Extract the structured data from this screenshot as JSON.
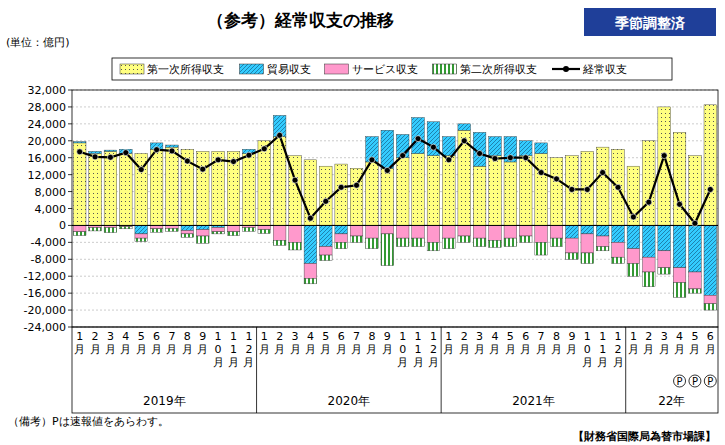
{
  "chart_data": {
    "type": "bar",
    "title": "（参考）経常収支の推移",
    "subtitle": "季節調整済",
    "y_label": "(単位：億円)",
    "notes": [
      "（備考）Pは速報値をあらわす。",
      "【財務省国際局為替市場課】"
    ],
    "stacked": true,
    "grid": true,
    "legend": "top",
    "ylim": [
      -24000,
      32000
    ],
    "yticks": [
      {
        "value": -24000,
        "label": "-24,000"
      },
      {
        "value": -20000,
        "label": "-20,000"
      },
      {
        "value": -16000,
        "label": "-16,000"
      },
      {
        "value": -12000,
        "label": "-12,000"
      },
      {
        "value": -8000,
        "label": "-8,000"
      },
      {
        "value": -4000,
        "label": "-4,000"
      },
      0,
      {
        "value": 4000,
        "label": "4,000"
      },
      {
        "value": 8000,
        "label": "8,000"
      },
      {
        "value": 12000,
        "label": "12,000"
      },
      {
        "value": 16000,
        "label": "16,000"
      },
      {
        "value": 20000,
        "label": "20,000"
      },
      {
        "value": 24000,
        "label": "24,000"
      },
      {
        "value": 28000,
        "label": "28,000"
      },
      {
        "value": 32000,
        "label": "32,000"
      }
    ],
    "categories": [
      "1月",
      "2月",
      "3月",
      "4月",
      "5月",
      "6月",
      "7月",
      "8月",
      "9月",
      "10月",
      "11月",
      "12月",
      "1月",
      "2月",
      "3月",
      "4月",
      "5月",
      "6月",
      "7月",
      "8月",
      "9月",
      "10月",
      "11月",
      "12月",
      "1月",
      "2月",
      "3月",
      "4月",
      "5月",
      "6月",
      "7月",
      "8月",
      "9月",
      "10月",
      "11月",
      "12月",
      "1月",
      "2月",
      "3月",
      "4月",
      "5月",
      "6月"
    ],
    "x_groups": [
      {
        "label": "2019年",
        "size": 12
      },
      {
        "label": "2020年",
        "size": 12
      },
      {
        "label": "2021年",
        "size": 12
      },
      {
        "label": "22年",
        "size": 6
      }
    ],
    "x_notes": [
      null,
      null,
      null,
      null,
      null,
      null,
      null,
      null,
      null,
      null,
      null,
      null,
      null,
      null,
      null,
      null,
      null,
      null,
      null,
      null,
      null,
      null,
      null,
      null,
      null,
      null,
      null,
      null,
      null,
      null,
      null,
      null,
      null,
      null,
      null,
      null,
      null,
      null,
      null,
      "P",
      "P",
      "P"
    ],
    "series": [
      {
        "name": "第一次所得収支",
        "type": "bar",
        "color": "#ffff80",
        "values": [
          19500,
          17000,
          17500,
          17000,
          17000,
          18000,
          18500,
          18000,
          17500,
          17500,
          17500,
          17000,
          20000,
          21000,
          16500,
          15500,
          14000,
          14500,
          13500,
          15000,
          13500,
          16000,
          17000,
          16500,
          16500,
          22500,
          14000,
          16500,
          15000,
          16500,
          17000,
          16000,
          16500,
          17500,
          18500,
          18000,
          14000,
          20000,
          28000,
          22000,
          16500,
          28500
        ]
      },
      {
        "name": "貿易収支",
        "type": "bar",
        "color": "#33ccff",
        "values": [
          300,
          500,
          300,
          1000,
          -2000,
          1500,
          500,
          -1200,
          -1000,
          -500,
          0,
          1000,
          0,
          5000,
          0,
          -9000,
          -5000,
          -2000,
          0,
          6000,
          9000,
          5500,
          8500,
          8000,
          4500,
          1500,
          8000,
          4500,
          6000,
          3500,
          2500,
          0,
          -3000,
          -2000,
          -2500,
          -4000,
          -5500,
          -7500,
          -6000,
          -10000,
          -11000,
          -16500
        ]
      },
      {
        "name": "サービス収支",
        "type": "bar",
        "color": "#ff99cc",
        "values": [
          -1500,
          -500,
          -500,
          -300,
          -1000,
          -800,
          -700,
          -800,
          -1500,
          -1000,
          -1500,
          -500,
          -1000,
          -3500,
          -4000,
          -3500,
          -2000,
          -2000,
          -2500,
          -3000,
          -2000,
          -3000,
          -3000,
          -4000,
          -3000,
          -2500,
          -3000,
          -3500,
          -3000,
          -2500,
          -4000,
          -3000,
          -3500,
          -4500,
          -2500,
          -3500,
          -3500,
          -3500,
          -4000,
          -3500,
          -4000,
          -2000
        ]
      },
      {
        "name": "第二次所得収支",
        "type": "bar",
        "color": "#339933",
        "values": [
          -900,
          -800,
          -1200,
          -500,
          -800,
          -800,
          -700,
          -800,
          -1700,
          -500,
          -900,
          -900,
          -900,
          -1200,
          -1800,
          -1300,
          -1300,
          -1500,
          -1500,
          -2500,
          -7500,
          -2000,
          -2000,
          -2000,
          -2500,
          -1500,
          -2000,
          -1700,
          -2000,
          -1500,
          -3000,
          -2000,
          -1500,
          -2500,
          -1000,
          -1500,
          -3000,
          -3500,
          -1500,
          -3500,
          -1000,
          -1500
        ]
      },
      {
        "name": "経常収支",
        "type": "line",
        "color": "#000000",
        "marker": "circle",
        "values": [
          17400,
          16200,
          16100,
          17200,
          13200,
          17900,
          17600,
          15200,
          13300,
          15500,
          15100,
          16600,
          18100,
          21300,
          10700,
          1700,
          5700,
          9000,
          9500,
          15500,
          13000,
          16500,
          20500,
          18500,
          15500,
          20000,
          17000,
          15800,
          16000,
          16000,
          12500,
          11000,
          8500,
          8500,
          12500,
          9000,
          2000,
          5500,
          16500,
          5000,
          500,
          8500
        ]
      }
    ]
  }
}
